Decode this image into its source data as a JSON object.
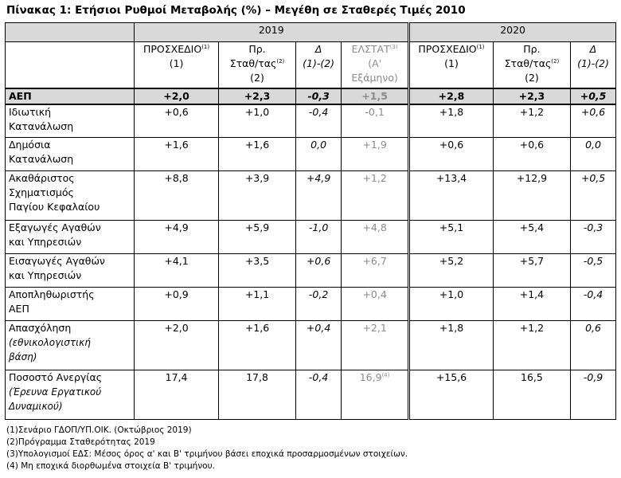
{
  "title": "Πίνακας 1: Ετήσιοι Ρυθμοί Μεταβολής (%) – Μεγέθη σε Σταθερές Τιμές 2010",
  "years": [
    "2019",
    "2020"
  ],
  "headers": {
    "c1": {
      "l1": "ΠΡΟΣΧΕΔΙΟ",
      "s1": "(1)",
      "l2": "(1)"
    },
    "c2": {
      "l1": "Πρ.",
      "l2": "Σταθ/τας",
      "s2": "(2)",
      "l3": "(2)"
    },
    "c3": {
      "l1": "Δ",
      "l2": "(1)-(2)"
    },
    "c4": {
      "l1": "ΕΛΣΤΑΤ",
      "s1": "(3)",
      "l2": "(Α'",
      "l3": "Εξάμηνο)"
    },
    "c5": {
      "l1": "ΠΡΟΣΧΕΔΙΟ",
      "s1": "(1)",
      "l2": "(1)"
    },
    "c6": {
      "l1": "Πρ.",
      "l2": "Σταθ/τας",
      "s2": "(2)",
      "l3": "(2)"
    },
    "c7": {
      "l1": "Δ",
      "l2": "(1)-(2)"
    }
  },
  "rows": [
    {
      "label": [
        "ΑΕΠ"
      ],
      "values": [
        "+2,0",
        "+2,3",
        "-0,3",
        "+1,5",
        "+2,8",
        "+2,3",
        "+0,5"
      ]
    },
    {
      "label": [
        "Ιδιωτική",
        "Κατανάλωση"
      ],
      "values": [
        "+0,6",
        "+1,0",
        "-0,4",
        "-0,1",
        "+1,8",
        "+1,2",
        "+0,6"
      ]
    },
    {
      "label": [
        "Δημόσια",
        "Κατανάλωση"
      ],
      "values": [
        "+1,6",
        "+1,6",
        "0,0",
        "+1,9",
        "+0,6",
        "+0,6",
        "0,0"
      ]
    },
    {
      "label": [
        "Ακαθάριστος",
        "Σχηματισμός",
        "Παγίου Κεφαλαίου"
      ],
      "values": [
        "+8,8",
        "+3,9",
        "+4,9",
        "+1,2",
        "+13,4",
        "+12,9",
        "+0,5"
      ]
    },
    {
      "label": [
        "Εξαγωγές Αγαθών",
        "και Υπηρεσιών"
      ],
      "values": [
        "+4,9",
        "+5,9",
        "-1,0",
        "+4,8",
        "+5,1",
        "+5,4",
        "-0,3"
      ]
    },
    {
      "label": [
        "Εισαγωγές Αγαθών",
        "και Υπηρεσιών"
      ],
      "values": [
        "+4,1",
        "+3,5",
        "+0,6",
        "+6,7",
        "+5,2",
        "+5,7",
        "-0,5"
      ]
    },
    {
      "label": [
        "Αποπληθωριστής",
        "ΑΕΠ"
      ],
      "values": [
        "+0,9",
        "+1,1",
        "-0,2",
        "+0,4",
        "+1,0",
        "+1,4",
        "-0,4"
      ]
    },
    {
      "label": [
        "Απασχόληση"
      ],
      "sublabel": [
        "(εθνικολογιστική",
        "βάση)"
      ],
      "values": [
        "+2,0",
        "+1,6",
        "+0,4",
        "+2,1",
        "+1,8",
        "+1,2",
        "0,6"
      ]
    },
    {
      "label": [
        "Ποσοστό Ανεργίας"
      ],
      "sublabel": [
        "(Έρευνα Εργατικού",
        "Δυναμικού)"
      ],
      "values": [
        "17,4",
        "17,8",
        "-0,4",
        "16,9",
        "+15,6",
        "16,5",
        "-0,9"
      ],
      "v4_sup": "(4)"
    }
  ],
  "notes": [
    "(1)Σενάριο ΓΔΟΠ/ΥΠ.ΟΙΚ. (Οκτώβριος 2019)",
    "(2)Πρόγραμμα Σταθερότητας 2019",
    "(3)Υπολογισμοί ΕΔΣ: Μέσος όρος α' και Β' τριμήνου βάσει εποχικά προσαρμοσμένων στοιχείων.",
    "(4) Μη εποχικά διορθωμένα στοιχεία Β' τριμήνου."
  ]
}
